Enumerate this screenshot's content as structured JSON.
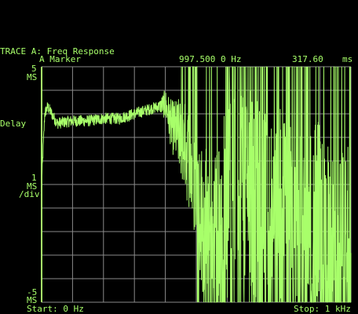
{
  "trace": {
    "title": "TRACE A: Freq Response",
    "marker_label": "A Marker",
    "marker_freq": "997.500 0 Hz",
    "marker_value": "317.60",
    "marker_unit": "ms"
  },
  "y_axis": {
    "top_value": "5",
    "top_unit": "MS",
    "measurement": "Delay",
    "scale_value": "1",
    "scale_unit": "MS",
    "scale_per": "/div",
    "bottom_value": "-5",
    "bottom_unit": "MS",
    "ylim": [
      -5,
      5
    ],
    "divisions": 10
  },
  "x_axis": {
    "start_label": "Start: 0 Hz",
    "stop_label": "Stop: 1 kHz",
    "xlim_hz": [
      0,
      1000
    ],
    "divisions": 10
  },
  "colors": {
    "background": "#000000",
    "trace": "#a8ff6a",
    "grid": "#8a8a8a",
    "text": "#a8ff6a"
  },
  "chart_data": {
    "type": "line",
    "title": "TRACE A: Freq Response",
    "ylabel": "Delay",
    "ylim": [
      -5,
      5
    ],
    "xlim": [
      0,
      1000
    ],
    "grid": true,
    "series": [
      {
        "name": "Freq Response",
        "x": [
          0,
          10,
          20,
          50,
          100,
          150,
          200,
          250,
          300,
          350,
          400,
          420,
          450,
          480,
          500,
          520,
          550,
          580,
          600,
          650,
          700,
          750,
          800,
          850,
          900,
          950,
          1000
        ],
        "y": [
          0.0,
          3.0,
          3.3,
          2.6,
          2.7,
          2.7,
          2.8,
          2.8,
          3.0,
          3.2,
          3.4,
          2.5,
          2.0,
          1.0,
          0.0,
          -1.5,
          -2.0,
          -2.5,
          0.0,
          0.5,
          -1.5,
          -2.0,
          -1.0,
          -3.0,
          -2.0,
          -4.0,
          -3.0
        ]
      }
    ]
  }
}
